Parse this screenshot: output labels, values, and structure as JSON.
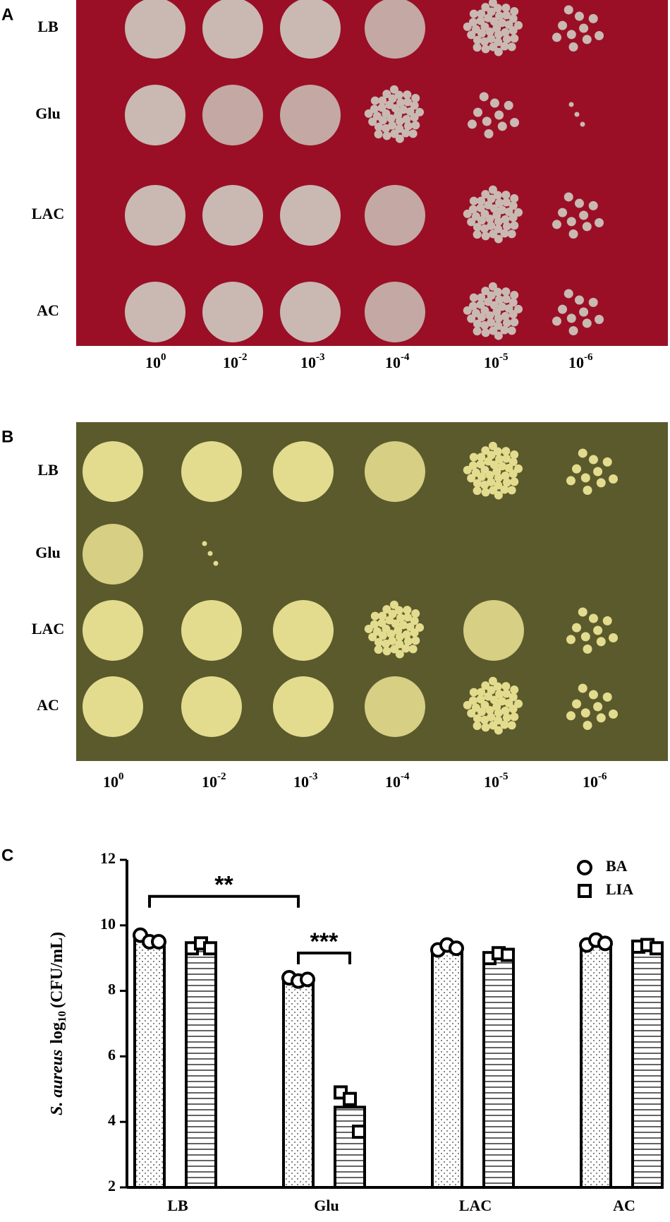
{
  "panels": [
    {
      "label": "A",
      "rows": [
        "LB",
        "Glu",
        "LAC",
        "AC"
      ],
      "dilutions": [
        {
          "base": "10",
          "exponent": "0"
        },
        {
          "base": "10",
          "exponent": "-2"
        },
        {
          "base": "10",
          "exponent": "-3"
        },
        {
          "base": "10",
          "exponent": "-4"
        },
        {
          "base": "10",
          "exponent": "-5"
        },
        {
          "base": "10",
          "exponent": "-6"
        }
      ]
    },
    {
      "label": "B",
      "rows": [
        "LB",
        "Glu",
        "LAC",
        "AC"
      ],
      "dilutions": [
        {
          "base": "10",
          "exponent": "0"
        },
        {
          "base": "10",
          "exponent": "-2"
        },
        {
          "base": "10",
          "exponent": "-3"
        },
        {
          "base": "10",
          "exponent": "-4"
        },
        {
          "base": "10",
          "exponent": "-5"
        },
        {
          "base": "10",
          "exponent": "-6"
        }
      ]
    }
  ],
  "chart_data": {
    "type": "bar",
    "panel_label": "C",
    "ylabel": {
      "species": "S. aureus",
      "measure": "log",
      "subscript": "10",
      "unit": "(CFU/mL)"
    },
    "categories": [
      "LB",
      "Glu",
      "LAC",
      "AC"
    ],
    "series": [
      {
        "name": "BA",
        "color": "#000000",
        "pattern": "dots",
        "marker": "circle",
        "values": [
          9.55,
          8.35,
          9.3,
          9.45
        ],
        "points": [
          [
            9.7,
            9.5,
            9.5
          ],
          [
            8.4,
            8.3,
            8.35
          ],
          [
            9.25,
            9.4,
            9.3
          ],
          [
            9.4,
            9.55,
            9.45
          ]
        ]
      },
      {
        "name": "LIA",
        "color": "#000000",
        "pattern": "lines",
        "marker": "square",
        "values": [
          9.35,
          4.45,
          9.1,
          9.35
        ],
        "points": [
          [
            9.3,
            9.45,
            9.3
          ],
          [
            4.9,
            4.7,
            3.7
          ],
          [
            9.0,
            9.15,
            9.1
          ],
          [
            9.35,
            9.4,
            9.3
          ]
        ]
      }
    ],
    "annotations": [
      {
        "text": "**",
        "from": [
          0,
          0
        ],
        "to": [
          1,
          0
        ]
      },
      {
        "text": "***",
        "from": [
          1,
          0
        ],
        "to": [
          1,
          1
        ]
      }
    ],
    "ylim": [
      2,
      12
    ],
    "yticks": [
      2,
      4,
      6,
      8,
      10,
      12
    ],
    "legend": "top-right"
  }
}
